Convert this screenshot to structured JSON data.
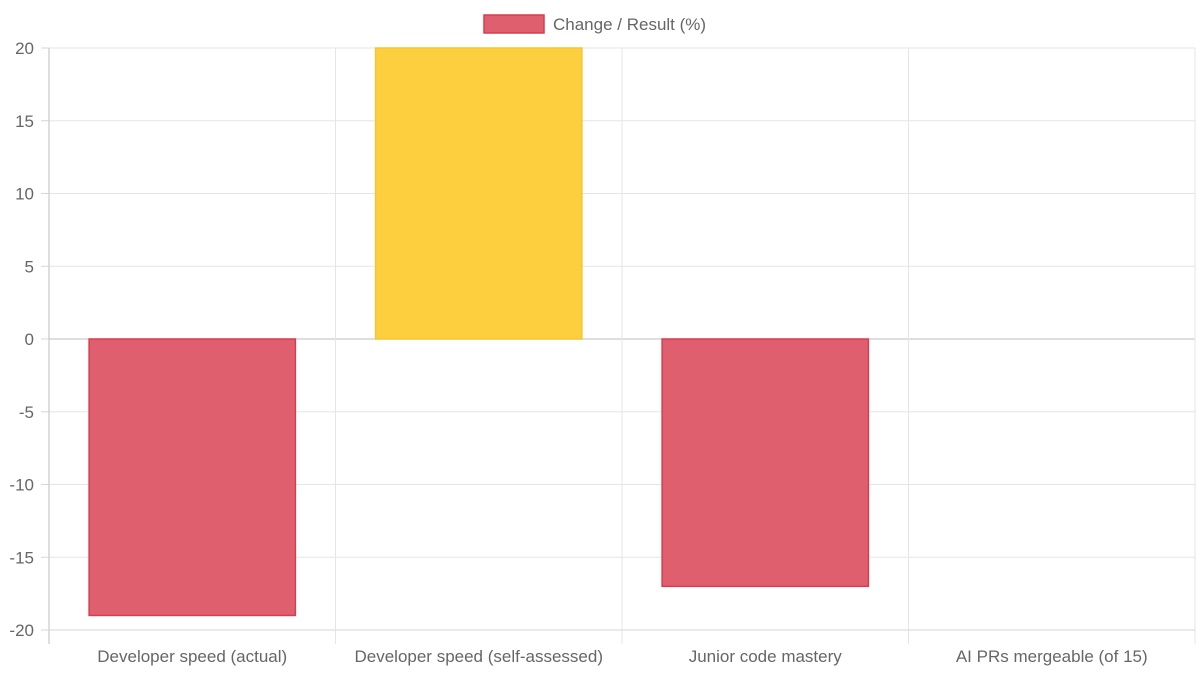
{
  "chart_data": {
    "type": "bar",
    "categories": [
      "Developer speed (actual)",
      "Developer speed (self-assessed)",
      "Junior code mastery",
      "AI PRs mergeable (of 15)"
    ],
    "series": [
      {
        "name": "Change / Result (%)",
        "values": [
          -19,
          20,
          -17,
          null
        ]
      }
    ],
    "bar_colors": [
      "#e05f6e",
      "#fdcf3f",
      "#e05f6e",
      "#e05f6e"
    ],
    "bar_border_colors": [
      "#d93c50",
      "#f7c52e",
      "#d93c50",
      "#d93c50"
    ],
    "legend_color": "#e05f6e",
    "legend_border_color": "#d93c50",
    "legend_position": "top",
    "ylim": [
      -20,
      20
    ],
    "yticks": [
      20,
      15,
      10,
      5,
      0,
      -5,
      -10,
      -15,
      -20
    ],
    "grid": true
  }
}
